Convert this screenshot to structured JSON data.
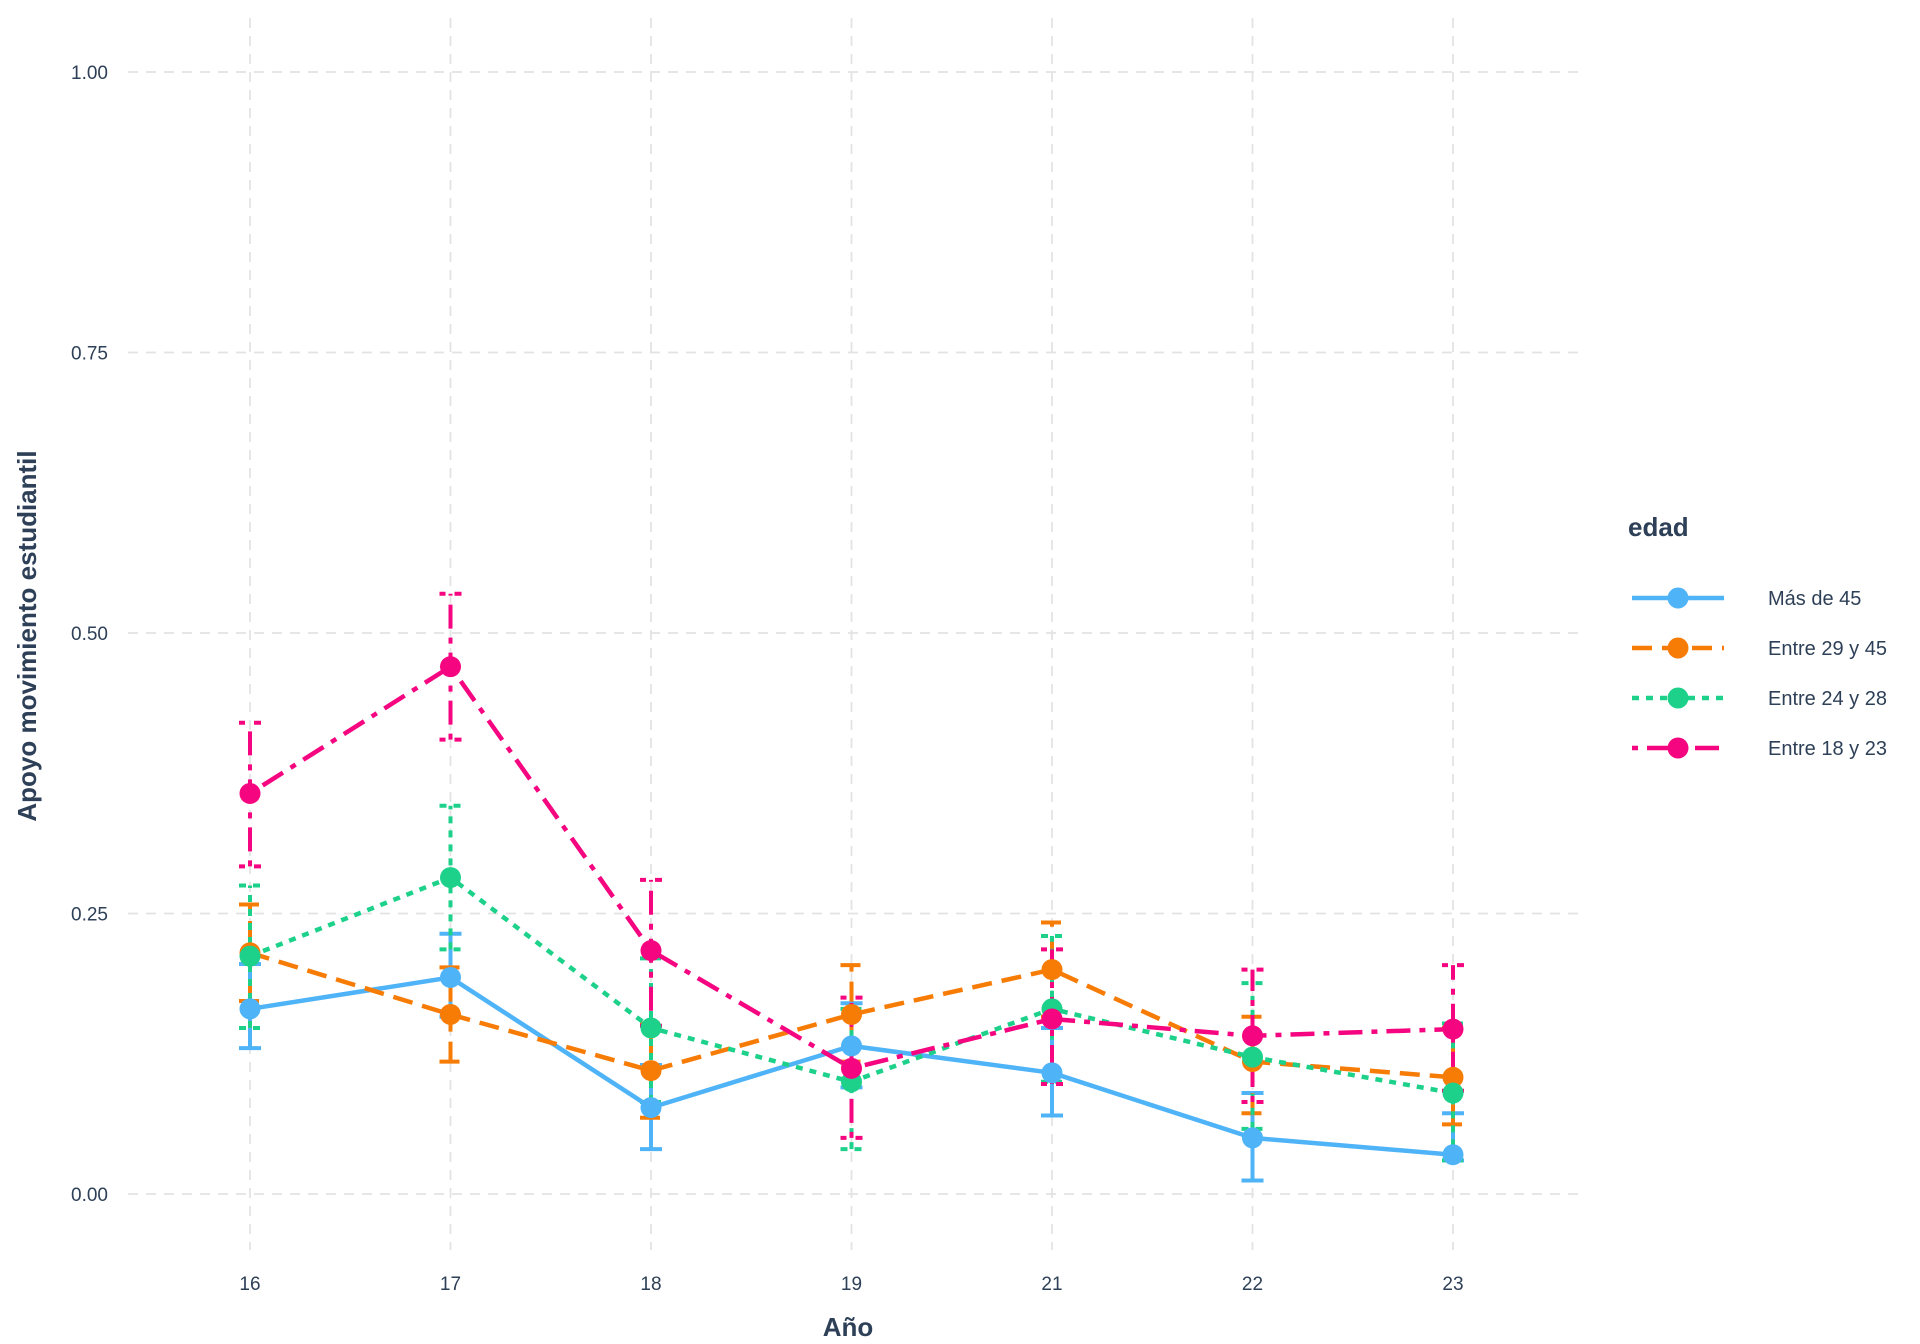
{
  "chart_data": {
    "type": "line",
    "title": "",
    "xlabel": "Año",
    "ylabel": "Apoyo movimiento estudiantil",
    "categories": [
      "16",
      "17",
      "18",
      "19",
      "21",
      "22",
      "23"
    ],
    "yticks": [
      "0.00",
      "0.25",
      "0.50",
      "0.75",
      "1.00"
    ],
    "ylim": [
      -0.05,
      1.05
    ],
    "grid": true,
    "legend": {
      "title": "edad",
      "position": "right"
    },
    "error_bars": true,
    "series": [
      {
        "name": "Más de 45",
        "color": "#4fb3f7",
        "linestyle": "solid",
        "values": [
          0.165,
          0.193,
          0.077,
          0.132,
          0.108,
          0.05,
          0.035
        ],
        "lower": [
          0.13,
          0.158,
          0.04,
          0.095,
          0.07,
          0.012,
          0.03
        ],
        "upper": [
          0.205,
          0.232,
          0.115,
          0.17,
          0.148,
          0.09,
          0.072
        ]
      },
      {
        "name": "Entre 29 y 45",
        "color": "#f77c06",
        "linestyle": "dashed",
        "values": [
          0.215,
          0.16,
          0.11,
          0.16,
          0.2,
          0.118,
          0.104
        ],
        "lower": [
          0.172,
          0.118,
          0.068,
          0.118,
          0.158,
          0.072,
          0.062
        ],
        "upper": [
          0.258,
          0.202,
          0.152,
          0.204,
          0.242,
          0.158,
          0.148
        ]
      },
      {
        "name": "Entre 24 y 28",
        "color": "#1dd18b",
        "linestyle": "dotted",
        "values": [
          0.212,
          0.282,
          0.148,
          0.1,
          0.165,
          0.122,
          0.09
        ],
        "lower": [
          0.148,
          0.218,
          0.082,
          0.04,
          0.1,
          0.058,
          0.03
        ],
        "upper": [
          0.275,
          0.346,
          0.21,
          0.165,
          0.23,
          0.188,
          0.152
        ]
      },
      {
        "name": "Entre 18 y 23",
        "color": "#f5057f",
        "linestyle": "dotdash",
        "values": [
          0.357,
          0.47,
          0.217,
          0.112,
          0.156,
          0.141,
          0.147
        ],
        "lower": [
          0.292,
          0.405,
          0.15,
          0.05,
          0.098,
          0.082,
          0.092
        ],
        "upper": [
          0.42,
          0.535,
          0.28,
          0.175,
          0.218,
          0.2,
          0.204
        ]
      }
    ]
  }
}
